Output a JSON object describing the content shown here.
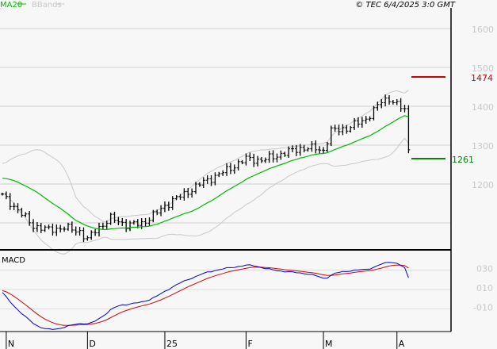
{
  "header": {
    "legend_ma": "MA20",
    "legend_bb": "BBands",
    "copyright": "© TEC 6/4/2025 3:0 GMT"
  },
  "colors": {
    "ma": "#00bb00",
    "bb": "#c8c8c8",
    "macd": "#0000dd",
    "signal": "#dd0000",
    "resistance": "#cc0000",
    "support": "#008800"
  },
  "levels": {
    "resistance": "1474",
    "support": "1261"
  },
  "macd_label": "MACD",
  "chart_data": {
    "type": "ohlc",
    "title": "",
    "price_ticks": [
      "1600",
      "1500",
      "1400",
      "1300",
      "1200"
    ],
    "price_tick_values": [
      1600,
      1500,
      1400,
      1300,
      1200
    ],
    "ylim": [
      1040,
      1650
    ],
    "macd_ticks": [
      "030",
      "010",
      "-010"
    ],
    "macd_tick_values": [
      30,
      10,
      -10
    ],
    "x_labels": [
      "N",
      "D",
      "25",
      "F",
      "M",
      "A"
    ],
    "x_label_bar_index": [
      1,
      22,
      42,
      63,
      83,
      102
    ],
    "close_keypoints": [
      [
        0,
        1170
      ],
      [
        4,
        1133
      ],
      [
        8,
        1092
      ],
      [
        12,
        1082
      ],
      [
        16,
        1088
      ],
      [
        20,
        1078
      ],
      [
        22,
        1057
      ],
      [
        24,
        1080
      ],
      [
        28,
        1112
      ],
      [
        32,
        1095
      ],
      [
        36,
        1098
      ],
      [
        40,
        1127
      ],
      [
        44,
        1159
      ],
      [
        47,
        1173
      ],
      [
        51,
        1200
      ],
      [
        55,
        1220
      ],
      [
        59,
        1241
      ],
      [
        63,
        1265
      ],
      [
        67,
        1261
      ],
      [
        70,
        1270
      ],
      [
        73,
        1280
      ],
      [
        77,
        1292
      ],
      [
        81,
        1292
      ],
      [
        83,
        1286
      ],
      [
        85,
        1337
      ],
      [
        89,
        1343
      ],
      [
        94,
        1367
      ],
      [
        98,
        1412
      ],
      [
        100,
        1420
      ],
      [
        102,
        1404
      ],
      [
        104,
        1390
      ],
      [
        105,
        1288
      ]
    ]
  }
}
